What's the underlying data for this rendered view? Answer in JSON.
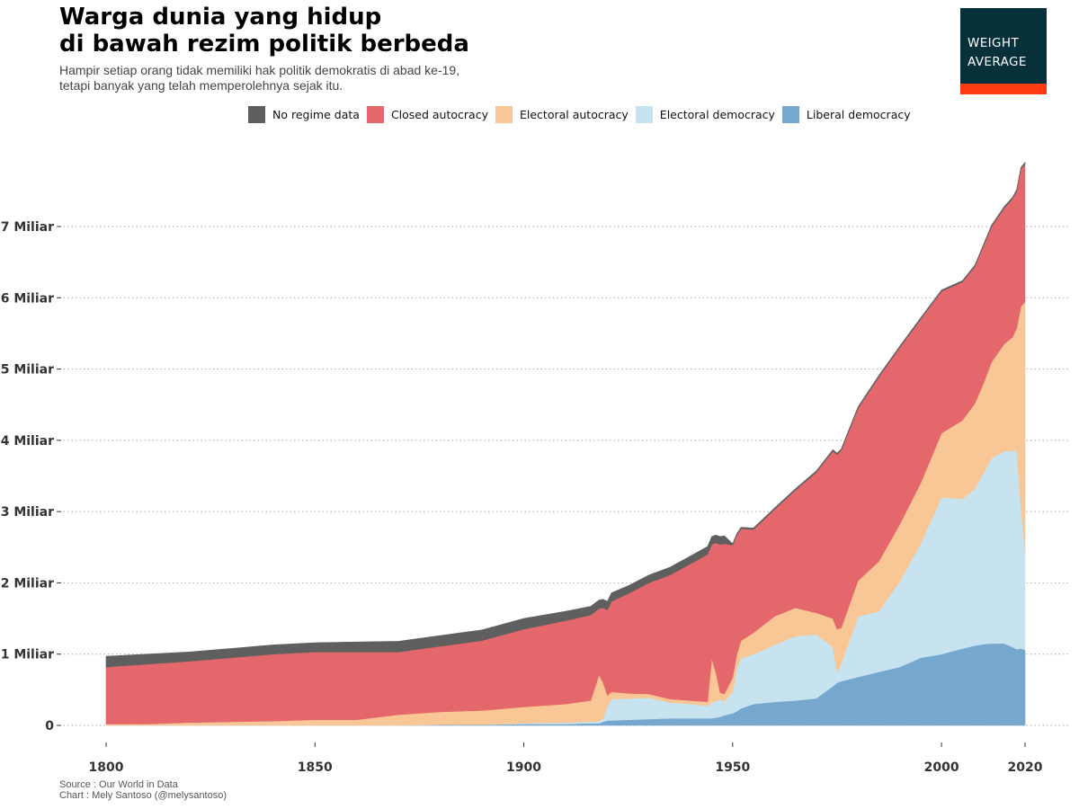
{
  "header": {
    "title_line1": "Warga dunia yang hidup",
    "title_line2": "di bawah rezim politik berbeda",
    "subtitle_line1": "Hampir setiap orang tidak memiliki hak politik demokratis di abad ke-19,",
    "subtitle_line2": "tetapi banyak yang telah memperolehnya sejak itu."
  },
  "logo": {
    "line1": "WEIGHT",
    "line2": "AVERAGE",
    "bg_color": "#06313a",
    "accent_color": "#ff3b0f"
  },
  "footer": {
    "source": "Source : Our World in Data",
    "credit": "Chart : Mely Santoso (@melysantoso)"
  },
  "chart_data": {
    "type": "area",
    "stacked": true,
    "x_label": "",
    "y_label": "",
    "xlim": [
      1800,
      2020
    ],
    "ylim": [
      0,
      7.8
    ],
    "x_ticks": [
      1800,
      1850,
      1900,
      1950,
      2000,
      2020
    ],
    "y_ticks": [
      {
        "value": 0,
        "label": "0"
      },
      {
        "value": 1,
        "label": "1 Miliar"
      },
      {
        "value": 2,
        "label": "2 Miliar"
      },
      {
        "value": 3,
        "label": "3 Miliar"
      },
      {
        "value": 4,
        "label": "4 Miliar"
      },
      {
        "value": 5,
        "label": "5 Miliar"
      },
      {
        "value": 6,
        "label": "6 Miliar"
      },
      {
        "value": 7,
        "label": "7 Miliar"
      }
    ],
    "grid": "horizontal dotted",
    "legend_position": "top",
    "x": [
      1800,
      1810,
      1820,
      1830,
      1840,
      1850,
      1860,
      1870,
      1880,
      1890,
      1900,
      1910,
      1916,
      1918,
      1919,
      1920,
      1921,
      1925,
      1930,
      1935,
      1940,
      1944,
      1945,
      1946,
      1947,
      1948,
      1950,
      1951,
      1952,
      1955,
      1960,
      1965,
      1970,
      1974,
      1975,
      1976,
      1980,
      1985,
      1990,
      1995,
      2000,
      2005,
      2008,
      2010,
      2012,
      2015,
      2017,
      2018,
      2019,
      2020
    ],
    "series": [
      {
        "name": "Liberal democracy",
        "color": "#76a8cf",
        "values": [
          0,
          0,
          0,
          0,
          0,
          0,
          0,
          0,
          0.01,
          0.01,
          0.02,
          0.02,
          0.03,
          0.03,
          0.05,
          0.07,
          0.07,
          0.08,
          0.09,
          0.1,
          0.1,
          0.1,
          0.1,
          0.11,
          0.12,
          0.14,
          0.17,
          0.2,
          0.24,
          0.3,
          0.33,
          0.35,
          0.38,
          0.55,
          0.6,
          0.62,
          0.68,
          0.75,
          0.82,
          0.95,
          1.0,
          1.08,
          1.12,
          1.14,
          1.15,
          1.15,
          1.1,
          1.07,
          1.08,
          1.06
        ]
      },
      {
        "name": "Electoral democracy",
        "color": "#c6e3ef",
        "values": [
          0,
          0,
          0,
          0,
          0,
          0,
          0,
          0,
          0,
          0,
          0.01,
          0.02,
          0.02,
          0.03,
          0.05,
          0.2,
          0.3,
          0.3,
          0.3,
          0.22,
          0.2,
          0.18,
          0.22,
          0.23,
          0.24,
          0.2,
          0.3,
          0.6,
          0.7,
          0.7,
          0.8,
          0.9,
          0.9,
          0.55,
          0.15,
          0.25,
          0.85,
          0.85,
          1.2,
          1.6,
          2.2,
          2.1,
          2.2,
          2.4,
          2.6,
          2.7,
          2.75,
          2.8,
          2.0,
          1.38
        ]
      },
      {
        "name": "Electoral autocracy",
        "color": "#f9c795",
        "values": [
          0.02,
          0.02,
          0.04,
          0.05,
          0.06,
          0.08,
          0.08,
          0.15,
          0.18,
          0.2,
          0.23,
          0.26,
          0.3,
          0.65,
          0.5,
          0.15,
          0.1,
          0.07,
          0.05,
          0.05,
          0.05,
          0.05,
          0.62,
          0.4,
          0.1,
          0.1,
          0.2,
          0.2,
          0.25,
          0.3,
          0.4,
          0.4,
          0.3,
          0.4,
          0.6,
          0.5,
          0.5,
          0.7,
          0.8,
          0.85,
          0.9,
          1.1,
          1.2,
          1.25,
          1.35,
          1.5,
          1.6,
          1.7,
          2.8,
          3.5
        ]
      },
      {
        "name": "Closed autocracy",
        "color": "#e4686b",
        "values": [
          0.8,
          0.84,
          0.86,
          0.9,
          0.94,
          0.95,
          0.95,
          0.88,
          0.92,
          0.98,
          1.09,
          1.17,
          1.2,
          0.93,
          1.05,
          1.2,
          1.27,
          1.4,
          1.56,
          1.74,
          1.92,
          2.07,
          1.6,
          1.82,
          2.08,
          2.11,
          1.86,
          1.67,
          1.57,
          1.45,
          1.5,
          1.65,
          1.97,
          2.35,
          2.45,
          2.49,
          2.42,
          2.59,
          2.48,
          2.3,
          1.99,
          1.94,
          1.92,
          1.93,
          1.9,
          1.91,
          1.94,
          1.93,
          1.93,
          1.94
        ]
      },
      {
        "name": "No regime data",
        "color": "#5f5f5f",
        "values": [
          0.15,
          0.14,
          0.13,
          0.13,
          0.13,
          0.13,
          0.14,
          0.15,
          0.15,
          0.15,
          0.15,
          0.13,
          0.12,
          0.12,
          0.12,
          0.12,
          0.12,
          0.11,
          0.11,
          0.11,
          0.11,
          0.11,
          0.11,
          0.11,
          0.11,
          0.11,
          0.02,
          0.02,
          0.02,
          0.02,
          0.02,
          0.02,
          0.02,
          0.02,
          0.02,
          0.02,
          0.02,
          0.02,
          0.02,
          0.02,
          0.02,
          0.02,
          0.02,
          0.02,
          0.02,
          0.02,
          0.02,
          0.02,
          0.02,
          0.02
        ]
      }
    ],
    "legend_order": [
      "No regime data",
      "Closed autocracy",
      "Electoral autocracy",
      "Electoral democracy",
      "Liberal democracy"
    ]
  }
}
